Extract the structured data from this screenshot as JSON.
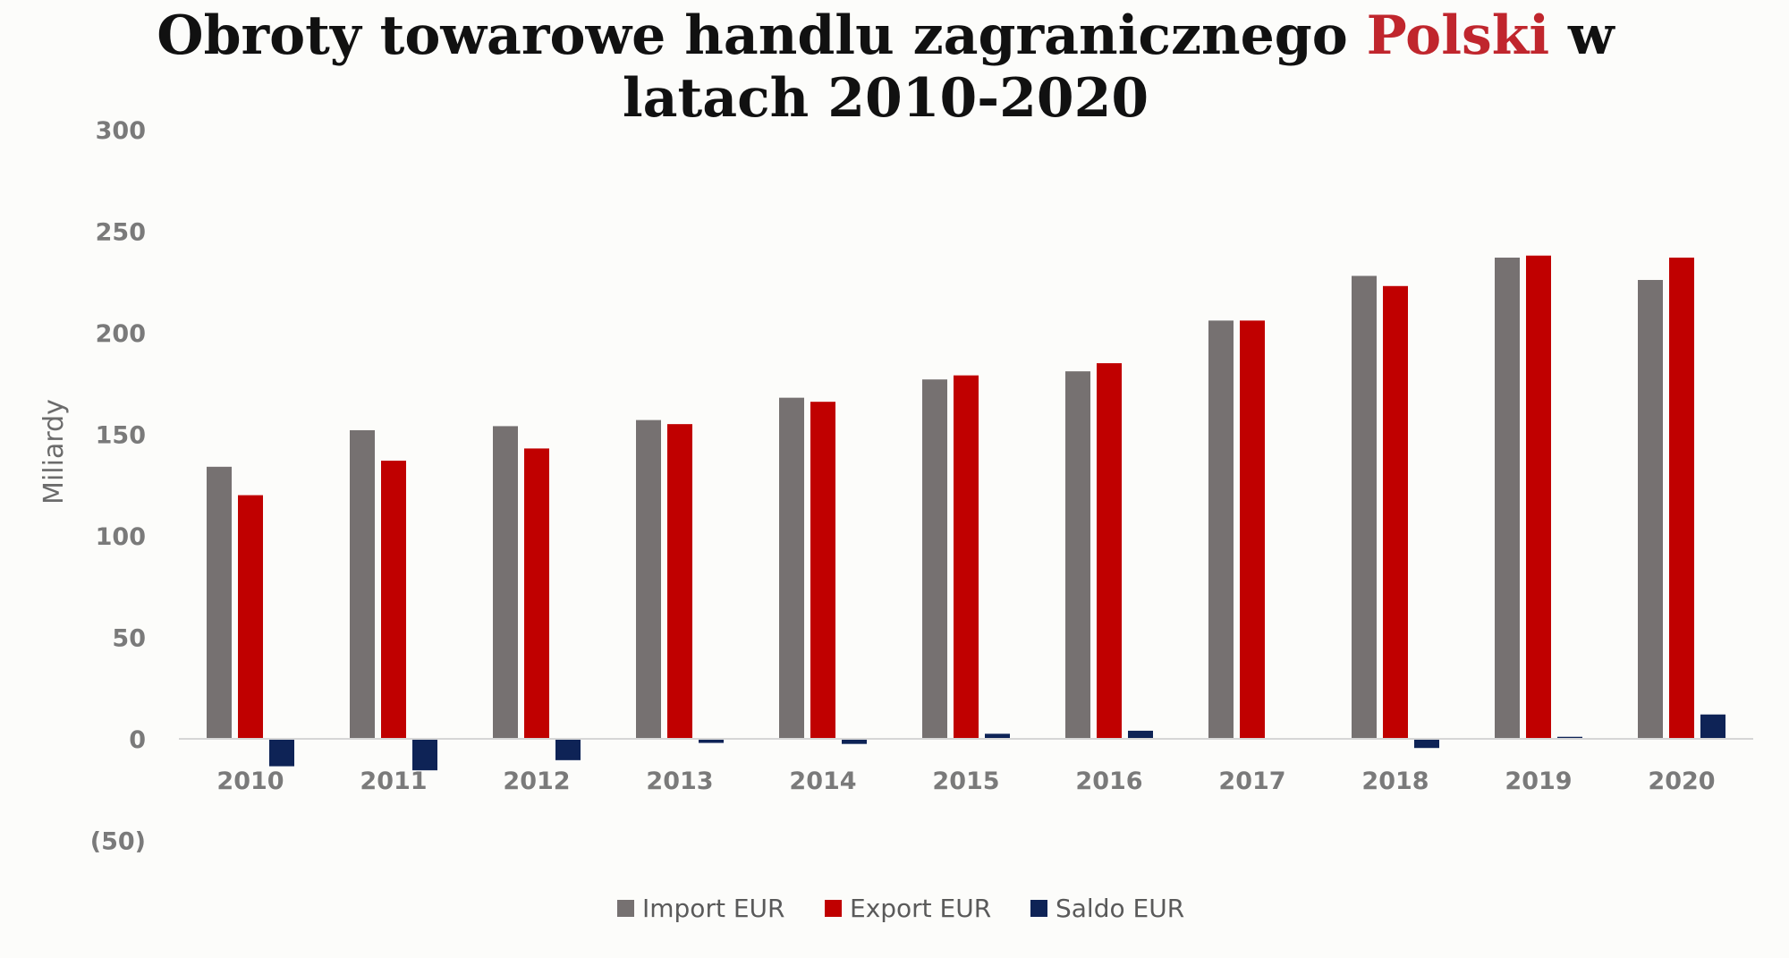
{
  "chart_data": {
    "type": "bar",
    "title_parts": [
      "Obroty towarowe handlu zagranicznego ",
      "Polski",
      " w"
    ],
    "title_line2": "latach 2010-2020",
    "ylabel": "Miliardy",
    "ylim": [
      -50,
      300
    ],
    "yticks": [
      -50,
      0,
      50,
      100,
      150,
      200,
      250,
      300
    ],
    "ytick_labels": [
      "(50)",
      "0",
      "50",
      "100",
      "150",
      "200",
      "250",
      "300"
    ],
    "categories": [
      "2010",
      "2011",
      "2012",
      "2013",
      "2014",
      "2015",
      "2016",
      "2017",
      "2018",
      "2019",
      "2020"
    ],
    "series": [
      {
        "name": "Import EUR",
        "color": "#767171",
        "values": [
          134,
          152,
          154,
          157,
          168,
          177,
          181,
          206,
          228,
          237,
          226
        ]
      },
      {
        "name": "Export EUR",
        "color": "#c00000",
        "values": [
          120,
          137,
          143,
          155,
          166,
          179,
          185,
          206,
          223,
          238,
          237
        ]
      },
      {
        "name": "Saldo EUR",
        "color": "#0e2356",
        "values": [
          -13.5,
          -15.5,
          -10.5,
          -2,
          -2.5,
          2.5,
          4,
          0,
          -4.5,
          1,
          12
        ]
      }
    ],
    "grid": false,
    "legend_position": "bottom",
    "title_highlight_color": "#c0262d"
  }
}
